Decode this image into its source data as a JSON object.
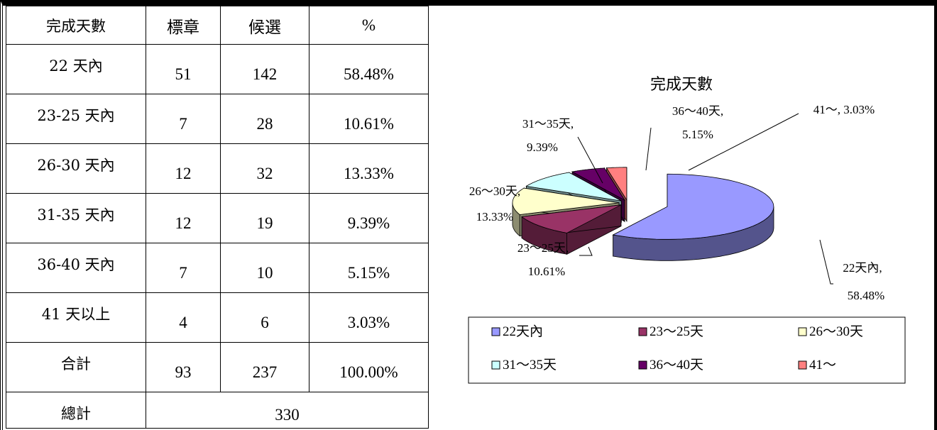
{
  "table": {
    "header": [
      "完成天數",
      "標章",
      "候選",
      "%"
    ],
    "rows": [
      [
        "22 天內",
        "51",
        "142",
        "58.48%"
      ],
      [
        "23-25 天內",
        "7",
        "28",
        "10.61%"
      ],
      [
        "26-30 天內",
        "12",
        "32",
        "13.33%"
      ],
      [
        "31-35 天內",
        "12",
        "19",
        "9.39%"
      ],
      [
        "36-40 天內",
        "7",
        "10",
        "5.15%"
      ],
      [
        "41 天以上",
        "4",
        "6",
        "3.03%"
      ],
      [
        "合計",
        "93",
        "237",
        "100.00%"
      ]
    ],
    "total_row": [
      "總計",
      "330"
    ]
  },
  "chart_data": {
    "type": "pie",
    "title": "完成天數",
    "categories": [
      "22天內",
      "23～25天",
      "26～30天",
      "31～35天",
      "36～40天",
      "41～"
    ],
    "values": [
      58.48,
      10.61,
      13.33,
      9.39,
      5.15,
      3.03
    ],
    "data_labels": [
      [
        "22天內,",
        "58.48%"
      ],
      [
        "23～25天,",
        "10.61%"
      ],
      [
        "26～30天,",
        "13.33%"
      ],
      [
        "31～35天,",
        "9.39%"
      ],
      [
        "36～40天,",
        "5.15%"
      ],
      [
        "41～, 3.03%"
      ]
    ],
    "colors": [
      "#9999ff",
      "#993366",
      "#ffffcc",
      "#ccffff",
      "#660066",
      "#ff8080"
    ],
    "legend": "bottom"
  }
}
